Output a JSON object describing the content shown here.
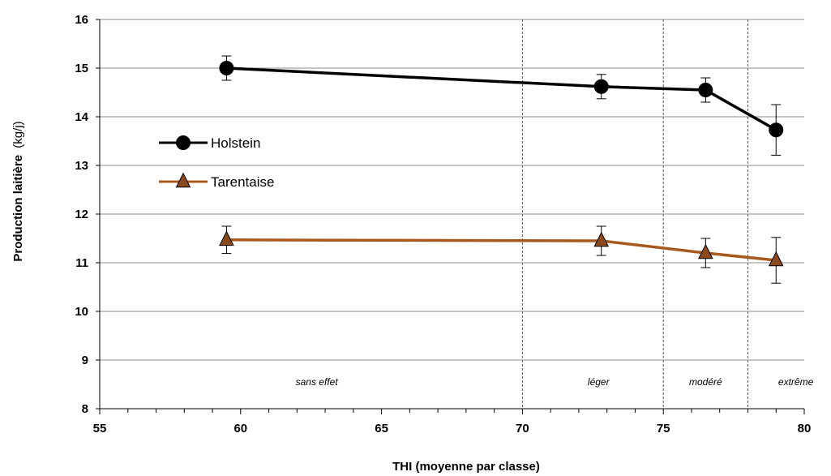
{
  "chart_data": {
    "type": "line",
    "title": "",
    "xlabel": "THI (moyenne par classe)",
    "ylabel_main": "Production laitière",
    "ylabel_unit": "(kg/j)",
    "xlim": [
      55,
      80
    ],
    "ylim": [
      8,
      16
    ],
    "xticks": [
      "55",
      "60",
      "65",
      "70",
      "75",
      "80"
    ],
    "yticks": [
      "8",
      "9",
      "10",
      "11",
      "12",
      "13",
      "14",
      "15",
      "16"
    ],
    "grid": "horizontal",
    "legend_position": "left",
    "series": [
      {
        "name": "Holstein",
        "color": "#000000",
        "marker": "circle",
        "x": [
          59.5,
          72.8,
          76.5,
          79.0
        ],
        "y": [
          15.0,
          14.62,
          14.55,
          13.73
        ],
        "err": [
          0.25,
          0.25,
          0.25,
          0.52
        ]
      },
      {
        "name": "Tarentaise",
        "color": "#a85a1e",
        "marker_fill": "#8b4a1e",
        "marker": "triangle",
        "x": [
          59.5,
          72.8,
          76.5,
          79.0
        ],
        "y": [
          11.47,
          11.45,
          11.2,
          11.05
        ],
        "err": [
          0.28,
          0.3,
          0.3,
          0.47
        ]
      }
    ],
    "thresholds": [
      70,
      75,
      78
    ],
    "zones": [
      {
        "label": "sans effet",
        "x": 62.7
      },
      {
        "label": "léger",
        "x": 72.7
      },
      {
        "label": "modéré",
        "x": 76.5
      },
      {
        "label": "extrême",
        "x": 79.7
      }
    ]
  }
}
